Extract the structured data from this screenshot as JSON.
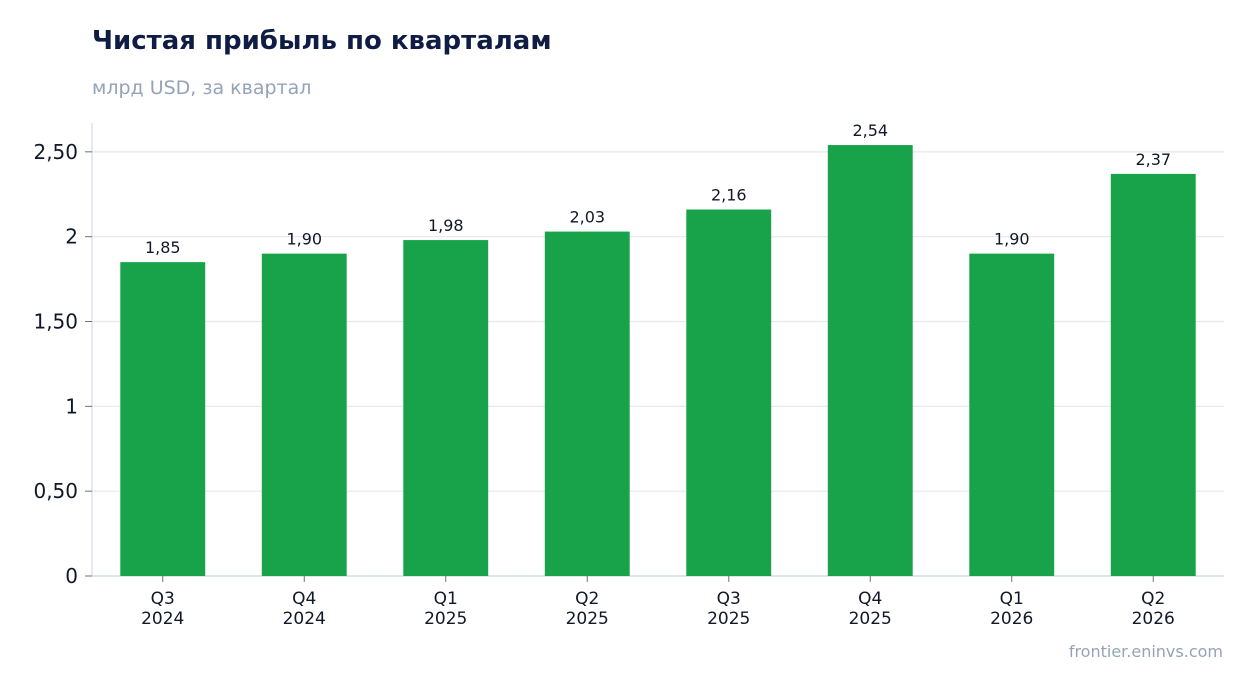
{
  "chart_data": {
    "type": "bar",
    "title": "Чистая прибыль по кварталам",
    "subtitle": "млрд USD, за квартал",
    "categories": [
      [
        "Q3",
        "2024"
      ],
      [
        "Q4",
        "2024"
      ],
      [
        "Q1",
        "2025"
      ],
      [
        "Q2",
        "2025"
      ],
      [
        "Q3",
        "2025"
      ],
      [
        "Q4",
        "2025"
      ],
      [
        "Q1",
        "2026"
      ],
      [
        "Q2",
        "2026"
      ]
    ],
    "values": [
      1.85,
      1.9,
      1.98,
      2.03,
      2.16,
      2.54,
      1.9,
      2.37
    ],
    "value_labels": [
      "1,85",
      "1,90",
      "1,98",
      "2,03",
      "2,16",
      "2,54",
      "1,90",
      "2,37"
    ],
    "yticks": [
      0,
      0.5,
      1,
      1.5,
      2,
      2.5
    ],
    "ytick_labels": [
      "0",
      "0,50",
      "1",
      "1,50",
      "2",
      "2,50"
    ],
    "ylim": [
      0,
      2.67
    ],
    "grid": true,
    "bar_color": "#18a34a",
    "grid_color": "#e5e7eb",
    "axis_color": "#cbd5e1"
  },
  "footer": {
    "credit": "frontier.eninvs.com"
  }
}
